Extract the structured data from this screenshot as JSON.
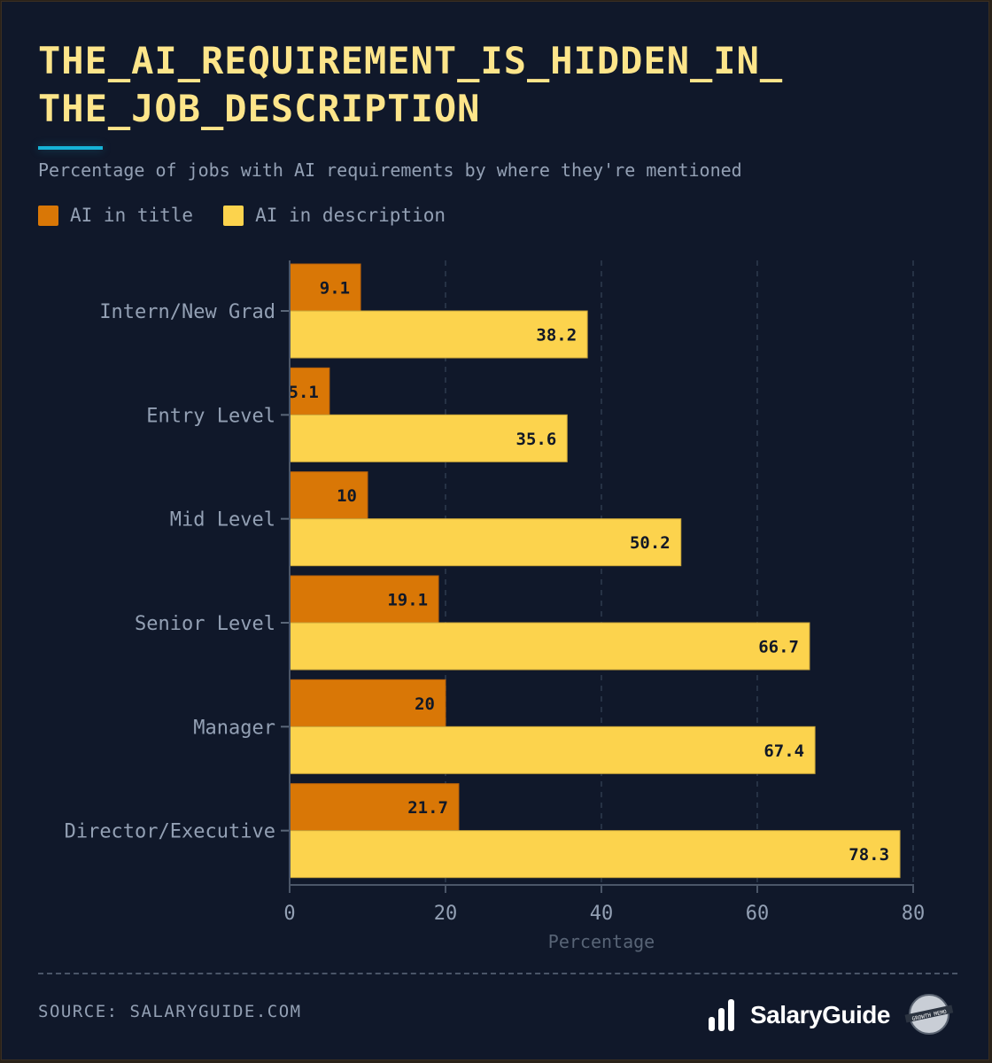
{
  "title": "THE_AI_REQUIREMENT_IS_HIDDEN_IN_ THE_JOB_DESCRIPTION",
  "subtitle": "Percentage of jobs with AI requirements by where they're mentioned",
  "legend": [
    {
      "label": "AI in title",
      "color": "#d97706"
    },
    {
      "label": "AI in description",
      "color": "#fcd34d"
    }
  ],
  "source": "SOURCE: SALARYGUIDE.COM",
  "brand": {
    "name": "SalaryGuide",
    "badge": "GROWTH MEMO"
  },
  "chart_data": {
    "type": "bar",
    "orientation": "horizontal",
    "title": "THE_AI_REQUIREMENT_IS_HIDDEN_IN_ THE_JOB_DESCRIPTION",
    "xlabel": "Percentage",
    "ylabel": "",
    "xlim": [
      0,
      80
    ],
    "xticks": [
      0,
      20,
      40,
      60,
      80
    ],
    "grid": "vertical dashed",
    "legend_position": "top-left",
    "categories": [
      "Intern/New Grad",
      "Entry Level",
      "Mid Level",
      "Senior Level",
      "Manager",
      "Director/Executive"
    ],
    "series": [
      {
        "name": "AI in title",
        "color": "#d97706",
        "values": [
          9.1,
          5.1,
          10,
          19.1,
          20,
          21.7
        ]
      },
      {
        "name": "AI in description",
        "color": "#fcd34d",
        "values": [
          38.2,
          35.6,
          50.2,
          66.7,
          67.4,
          78.3
        ]
      }
    ]
  }
}
